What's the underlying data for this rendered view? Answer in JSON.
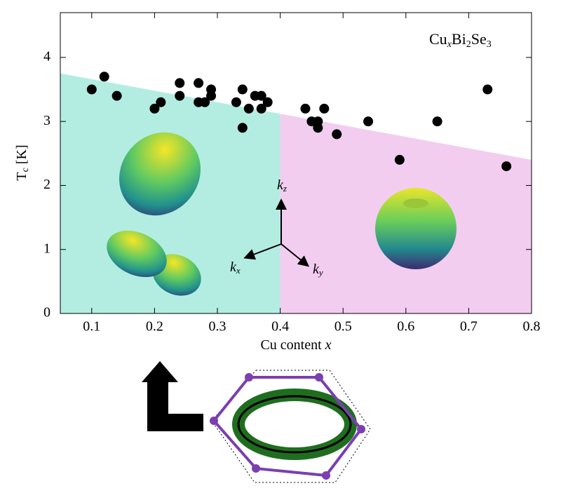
{
  "chart_data": {
    "type": "scatter",
    "annotation": [
      "Cu",
      "x",
      "Bi",
      "2",
      "Se",
      "3"
    ],
    "x_label": [
      "Cu content ",
      "x"
    ],
    "y_label": [
      "T",
      "c",
      " [K]"
    ],
    "axis_labels": [
      [
        "k",
        "z"
      ],
      [
        "k",
        "x"
      ],
      [
        "k",
        "y"
      ]
    ],
    "x": [
      0.1,
      0.12,
      0.14,
      0.2,
      0.21,
      0.24,
      0.24,
      0.27,
      0.27,
      0.28,
      0.29,
      0.29,
      0.33,
      0.34,
      0.34,
      0.35,
      0.36,
      0.37,
      0.37,
      0.38,
      0.44,
      0.45,
      0.46,
      0.46,
      0.47,
      0.49,
      0.54,
      0.59,
      0.65,
      0.73,
      0.76
    ],
    "values": [
      3.5,
      3.7,
      3.4,
      3.2,
      3.3,
      3.6,
      3.4,
      3.6,
      3.3,
      3.3,
      3.4,
      3.5,
      3.3,
      3.5,
      2.9,
      3.2,
      3.4,
      3.4,
      3.2,
      3.3,
      3.2,
      3.0,
      3.0,
      2.9,
      3.2,
      2.8,
      3.0,
      2.4,
      3.0,
      3.5,
      2.3
    ],
    "color": "#000000",
    "shaded_regions": [
      {
        "xlim": [
          0.05,
          0.4
        ],
        "color": "#b3ede2"
      },
      {
        "xlim": [
          0.4,
          0.8
        ],
        "color": "#f3cdf0"
      }
    ],
    "region_top": [
      3.75,
      2.4
    ],
    "xlim": [
      0.05,
      0.8
    ],
    "ylim": [
      0,
      4.7
    ],
    "xticks": [
      0.1,
      0.2,
      0.3,
      0.4,
      0.5,
      0.6,
      0.7,
      0.8
    ],
    "yticks": [
      0,
      1,
      2,
      3,
      4
    ]
  }
}
